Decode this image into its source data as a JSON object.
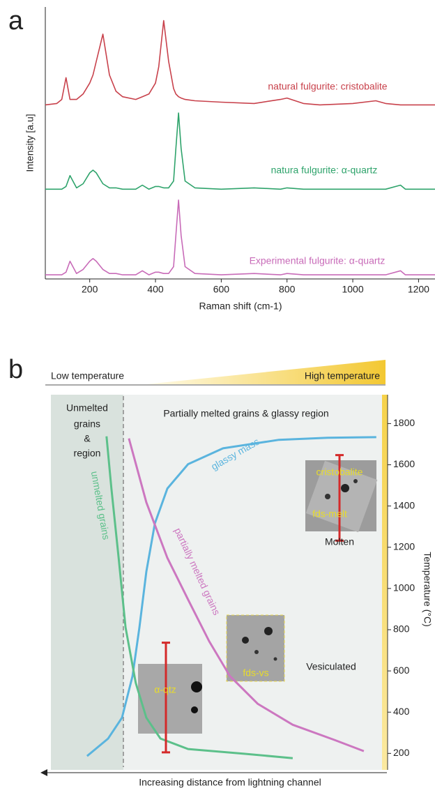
{
  "chart_data": [
    {
      "type": "line",
      "panel": "a",
      "xlabel": "Raman shift (cm-1)",
      "ylabel": "Intensity [a.u]",
      "xlim": [
        65,
        1250
      ],
      "xticks": [
        200,
        400,
        600,
        800,
        1000,
        1200
      ],
      "ylim": [
        0,
        100
      ],
      "x": [
        65,
        100,
        115,
        128,
        140,
        160,
        180,
        200,
        210,
        220,
        240,
        260,
        280,
        300,
        340,
        360,
        380,
        400,
        410,
        425,
        440,
        455,
        462,
        470,
        478,
        490,
        520,
        600,
        700,
        780,
        800,
        850,
        900,
        1000,
        1070,
        1100,
        1145,
        1160,
        1200,
        1250
      ],
      "series": [
        {
          "name": "natural fulgurite: cristobalite",
          "color": "#c8414b",
          "values": [
            64,
            64.5,
            66,
            74,
            66,
            66,
            68,
            72,
            75,
            80,
            90,
            75,
            69,
            67,
            66,
            67,
            68,
            72,
            78,
            95,
            80,
            70,
            68,
            67,
            66.5,
            66,
            65.5,
            65,
            64.5,
            66,
            66.5,
            64.5,
            64,
            64.5,
            65.5,
            64.5,
            64,
            64,
            64,
            64
          ]
        },
        {
          "name": "natura fulgurite: α-quartz",
          "color": "#2ea36b",
          "values": [
            33,
            33,
            33,
            34,
            38,
            33.5,
            35,
            39,
            40,
            39,
            35,
            33.5,
            33.5,
            33,
            33,
            34.5,
            33,
            34,
            34,
            33.5,
            33.5,
            36,
            48,
            61,
            48,
            36,
            33.5,
            33,
            33.5,
            33,
            33.5,
            33,
            33,
            33,
            33,
            33,
            34.5,
            33,
            33,
            33
          ]
        },
        {
          "name": "Experimental fulgurite: α-quartz",
          "color": "#c86bb8",
          "values": [
            1.5,
            1.5,
            1.5,
            2.5,
            6.5,
            2,
            3.5,
            6.5,
            7.5,
            6.5,
            3.5,
            2,
            2,
            1.5,
            1.5,
            3,
            1.5,
            2.5,
            2.5,
            2,
            2,
            4.5,
            16,
            29,
            16,
            4.5,
            2,
            1.5,
            2,
            1.5,
            2,
            1.5,
            1.5,
            1.5,
            1.5,
            1.5,
            3,
            1.5,
            1.5,
            1.5
          ]
        }
      ]
    },
    {
      "type": "line",
      "panel": "b",
      "xlabel": "Increasing distance from lightning channel",
      "ylabel": "Temperature (°C)",
      "low_label": "Low temperature",
      "high_label": "High temperature",
      "xlim": [
        0,
        100
      ],
      "ylim": [
        120,
        1940
      ],
      "yticks": [
        200,
        400,
        600,
        800,
        1000,
        1200,
        1400,
        1600,
        1800
      ],
      "series": [
        {
          "name": "glassy mass",
          "color": "#5ab4de",
          "x": [
            11.0,
            17.4,
            21.6,
            24.8,
            26.9,
            29.0,
            31.6,
            35.4,
            41.7,
            52.3,
            69.3,
            84.1,
            98.9
          ],
          "values": [
            187,
            272,
            373,
            575,
            811,
            1081,
            1316,
            1485,
            1603,
            1680,
            1721,
            1731,
            1734
          ]
        },
        {
          "name": "unmelted grains",
          "color": "#5cc08a",
          "x": [
            16.9,
            18.4,
            20.6,
            22.7,
            25.8,
            29.0,
            33.3,
            41.7,
            58.7,
            73.5
          ],
          "values": [
            1738,
            1485,
            1148,
            811,
            541,
            373,
            272,
            221,
            198,
            177
          ]
        },
        {
          "name": "partially melted grains",
          "color": "#cc77c0",
          "x": [
            23.7,
            29.0,
            35.4,
            41.7,
            48.1,
            54.4,
            62.9,
            73.5,
            86.2,
            95.1
          ],
          "values": [
            1728,
            1418,
            1148,
            946,
            744,
            575,
            440,
            339,
            265,
            211
          ]
        }
      ],
      "ranges": [
        [
          1232,
          1647
        ],
        [
          205,
          737
        ]
      ],
      "annotations": [
        "Unmelted",
        "grains",
        "&",
        "region",
        "Partially melted grains & glassy region",
        "cristobalite",
        "fds-melt",
        "Molten",
        "α-qtz",
        "fds-vs",
        "Vesiculated"
      ]
    }
  ]
}
